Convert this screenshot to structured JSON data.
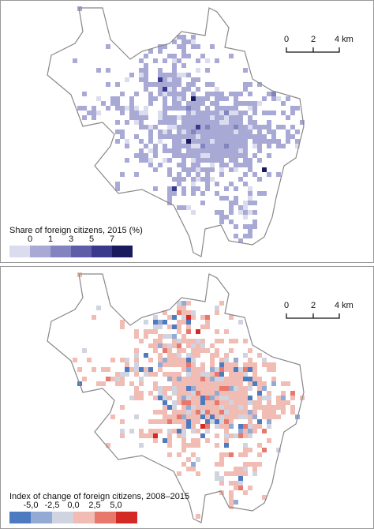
{
  "panels": [
    {
      "legend": {
        "title": "Share of foreign citizens, 2015 (%)",
        "labels": [
          "0",
          "1",
          "3",
          "5",
          "7"
        ],
        "colors": [
          "#dcdcef",
          "#a9a9d6",
          "#8383c0",
          "#5e5ea8",
          "#3a3a8c",
          "#1a1a5e"
        ]
      },
      "scale_bar": {
        "labels": [
          "0",
          "2",
          "4 km"
        ]
      }
    },
    {
      "legend": {
        "title": "Index of change of foreign citizens, 2008–2015",
        "labels": [
          "-5,0",
          "-2,5",
          "0,0",
          "2,5",
          "5,0"
        ],
        "colors": [
          "#4e7ac0",
          "#93aad4",
          "#d0d4e0",
          "#f0bcb4",
          "#e8786c",
          "#d42a26"
        ]
      },
      "scale_bar": {
        "labels": [
          "0",
          "2",
          "4 km"
        ]
      }
    }
  ]
}
